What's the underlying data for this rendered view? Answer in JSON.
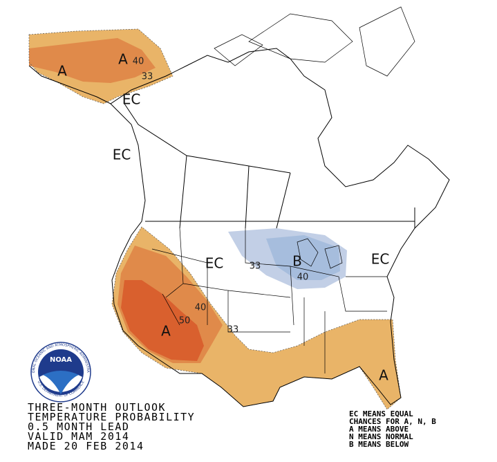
{
  "map_labels": [
    "A",
    "A",
    "40",
    "33",
    "EC",
    "EC",
    "EC",
    "33",
    "B",
    "40",
    "EC",
    "40",
    "50",
    "A",
    "33",
    "A"
  ],
  "logo": {
    "name": "NOAA",
    "ring_top": "NATIONAL OCEANIC AND ATMOSPHERIC ADMINISTRATION",
    "ring_bottom": "U.S. DEPARTMENT OF COMMERCE"
  },
  "title_lines": [
    "THREE-MONTH OUTLOOK",
    "TEMPERATURE PROBABILITY",
    "0.5 MONTH LEAD",
    "VALID MAM 2014",
    "MADE 20 FEB 2014"
  ],
  "legend_lines": [
    "EC MEANS EQUAL",
    "CHANCES FOR A, N, B",
    "A MEANS ABOVE",
    "N MEANS NORMAL",
    "B MEANS BELOW"
  ]
}
